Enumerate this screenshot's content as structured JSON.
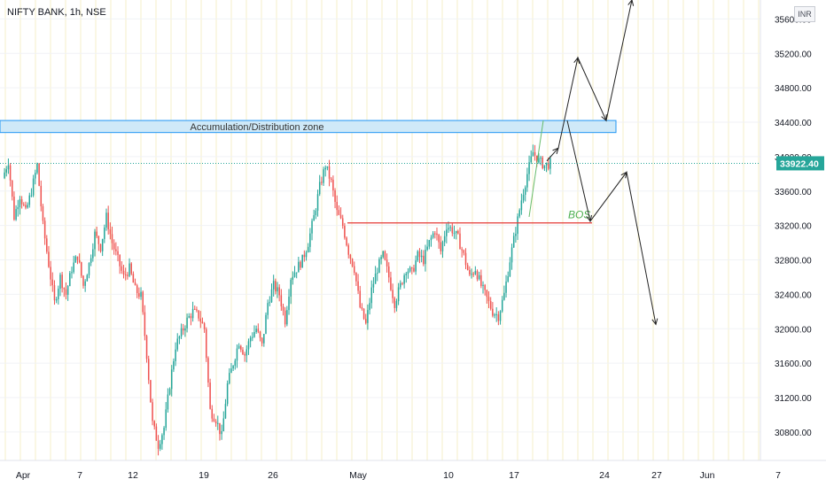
{
  "header": {
    "symbol_line": "NIFTY BANK, 1h, NSE"
  },
  "currency_badge": "INR",
  "chart_data": {
    "type": "candlestick",
    "title": "NIFTY BANK, 1h, NSE",
    "y_axis": {
      "ticks": [
        30800,
        31200,
        31600,
        32000,
        32400,
        32800,
        33200,
        33600,
        34000,
        34400,
        34800,
        35200,
        35600
      ],
      "tick_labels": [
        "30800.00",
        "31200.00",
        "31600.00",
        "32000.00",
        "32400.00",
        "32800.00",
        "33200.00",
        "33600.00",
        "34000.00",
        "34400.00",
        "34800.00",
        "35200.00",
        "35600.00"
      ],
      "range": [
        30470,
        35820
      ]
    },
    "x_axis": {
      "tick_labels": [
        "Apr",
        "7",
        "12",
        "19",
        "26",
        "May",
        "10",
        "17",
        "24",
        "27",
        "Jun",
        "7"
      ],
      "range_note": "hourly sessions, late Mar to early Jun 2021"
    },
    "last_price": 33922.4,
    "last_price_label": "33922.40",
    "colors": {
      "up": "#26a69a",
      "down": "#ef5350",
      "zone": "#2196f3",
      "bos": "#4caf50",
      "bos_line": "#e53935",
      "price_tag": "#26a69a"
    },
    "zone": {
      "label": "Accumulation/Distribution zone",
      "top": 34420,
      "bottom": 34280
    },
    "bos": {
      "label": "BOS",
      "level": 33230
    },
    "projection_arrows": [
      [
        [
          33950,
          0
        ],
        [
          34100,
          0
        ],
        [
          35150,
          0
        ],
        [
          34420,
          0
        ],
        [
          35820,
          0
        ]
      ],
      [
        [
          34420,
          0
        ],
        [
          33250,
          0
        ],
        [
          33820,
          0
        ],
        [
          32050,
          0
        ]
      ]
    ],
    "price_path": [
      33750,
      33950,
      33300,
      33550,
      33350,
      33600,
      33900,
      33200,
      32750,
      32300,
      32600,
      32400,
      32700,
      32850,
      32500,
      32750,
      33100,
      32950,
      33300,
      33000,
      32800,
      32600,
      32700,
      32450,
      32380,
      31700,
      30900,
      30650,
      30850,
      31350,
      31800,
      31950,
      32100,
      32200,
      32150,
      32000,
      31050,
      30950,
      30750,
      31350,
      31600,
      31850,
      31700,
      31900,
      32000,
      31800,
      32300,
      32500,
      32400,
      32100,
      32600,
      32700,
      32800,
      33000,
      33300,
      33650,
      33900,
      33700,
      33350,
      33200,
      32900,
      32700,
      32250,
      32050,
      32450,
      32700,
      32850,
      32600,
      32300,
      32500,
      32700,
      32650,
      32850,
      32800,
      33000,
      33150,
      32900,
      33200,
      33150,
      33050,
      32850,
      32600,
      32700,
      32500,
      32350,
      32200,
      32150,
      32400,
      32800,
      33150,
      33500,
      33800,
      34050,
      33950,
      33900,
      33920
    ]
  }
}
